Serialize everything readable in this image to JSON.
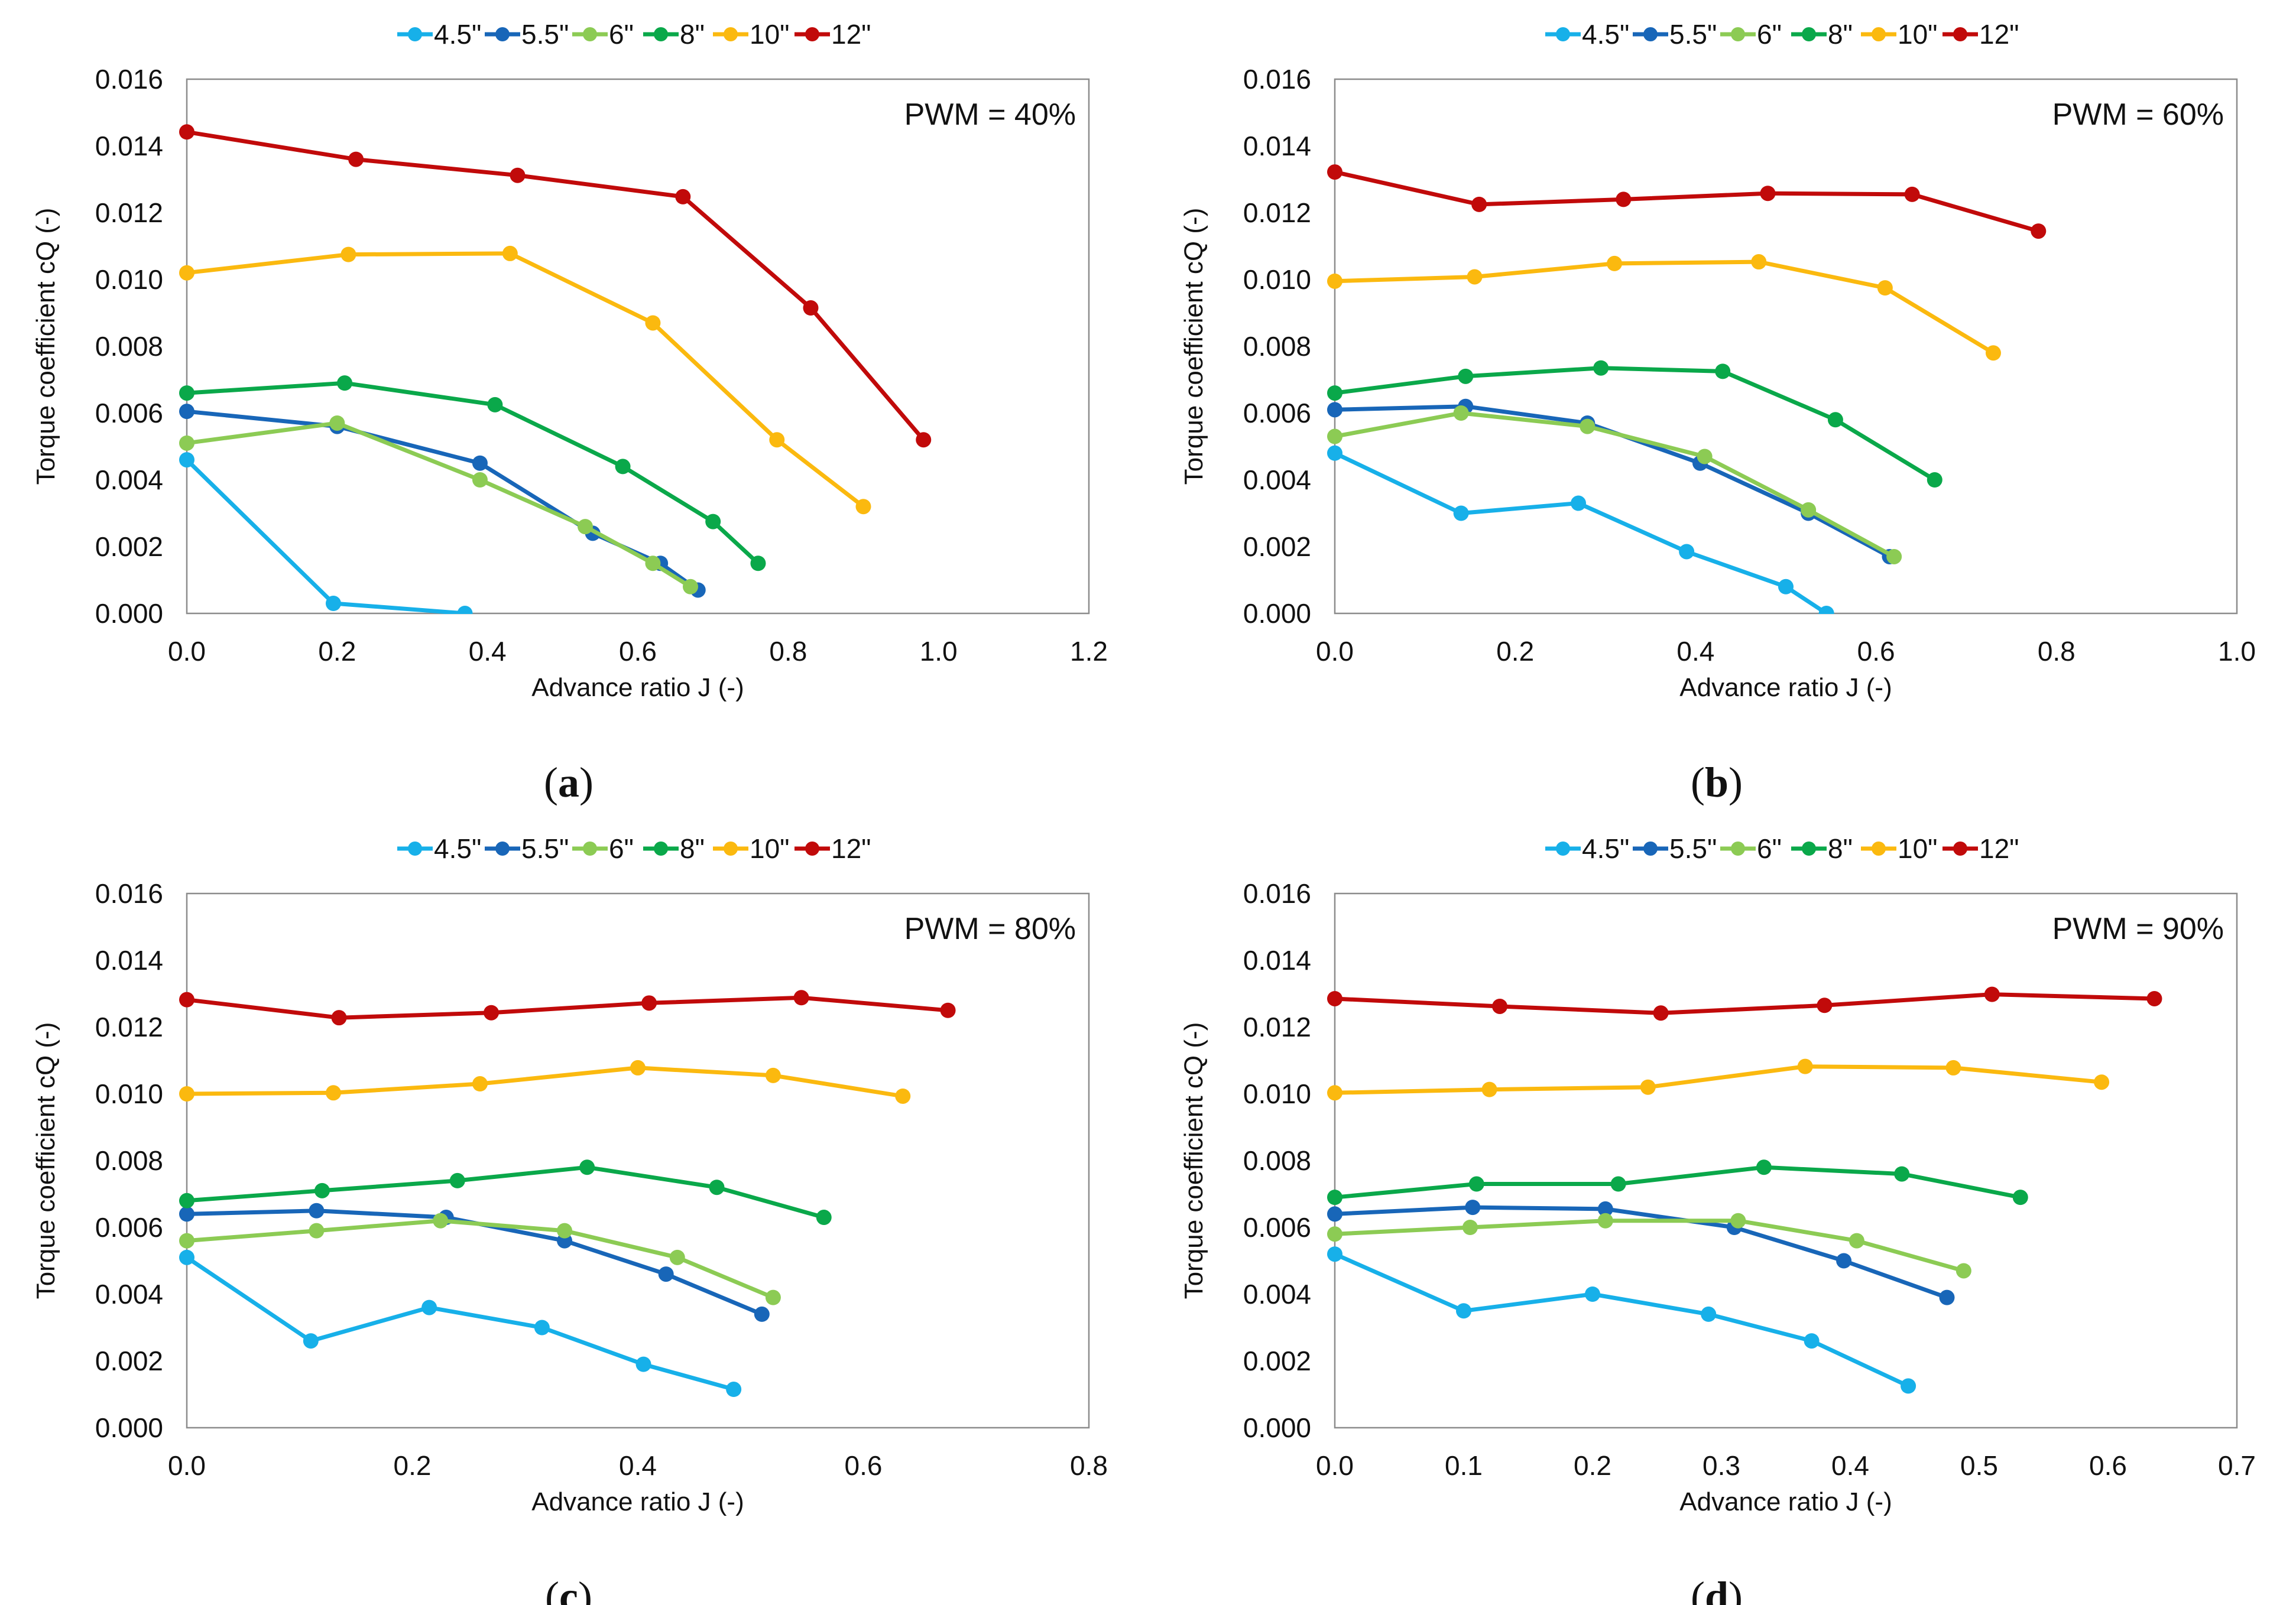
{
  "chart_data": [
    {
      "type": "line",
      "panel_label": "a",
      "annotation": "PWM = 40%",
      "xlabel": "Advance ratio J (-)",
      "ylabel": "Torque coefficient cQ (-)",
      "xlim": [
        0,
        1.2
      ],
      "ylim": [
        0,
        0.016
      ],
      "xticks": [
        "0.0",
        "0.2",
        "0.4",
        "0.6",
        "0.8",
        "1.0",
        "1.2"
      ],
      "yticks": [
        "0.000",
        "0.002",
        "0.004",
        "0.006",
        "0.008",
        "0.010",
        "0.012",
        "0.014",
        "0.016"
      ],
      "grid": false,
      "legend_position": "top-center",
      "series": [
        {
          "name": "4.5\"",
          "color": "#17b0e9",
          "x": [
            0.0,
            0.195,
            0.37
          ],
          "y": [
            0.0046,
            0.0003,
            0.0
          ]
        },
        {
          "name": "5.5\"",
          "color": "#1866b8",
          "x": [
            0.0,
            0.2,
            0.39,
            0.54,
            0.63,
            0.68
          ],
          "y": [
            0.00605,
            0.0056,
            0.0045,
            0.0024,
            0.0015,
            0.0007
          ]
        },
        {
          "name": "6\"",
          "color": "#8ccb54",
          "x": [
            0.0,
            0.2,
            0.39,
            0.53,
            0.62,
            0.67
          ],
          "y": [
            0.0051,
            0.0057,
            0.004,
            0.0026,
            0.0015,
            0.0008
          ]
        },
        {
          "name": "8\"",
          "color": "#0aa84a",
          "x": [
            0.0,
            0.21,
            0.41,
            0.58,
            0.7,
            0.76
          ],
          "y": [
            0.0066,
            0.0069,
            0.00625,
            0.0044,
            0.00275,
            0.0015
          ]
        },
        {
          "name": "10\"",
          "color": "#fbb90f",
          "x": [
            0.0,
            0.215,
            0.43,
            0.62,
            0.785,
            0.9
          ],
          "y": [
            0.0102,
            0.01075,
            0.01078,
            0.0087,
            0.0052,
            0.0032
          ]
        },
        {
          "name": "12\"",
          "color": "#c10a0a",
          "x": [
            0.0,
            0.225,
            0.44,
            0.66,
            0.83,
            0.98
          ],
          "y": [
            0.01442,
            0.0136,
            0.01312,
            0.01248,
            0.00915,
            0.0052
          ]
        }
      ]
    },
    {
      "type": "line",
      "panel_label": "b",
      "annotation": "PWM = 60%",
      "xlabel": "Advance ratio J (-)",
      "ylabel": "Torque coefficient cQ (-)",
      "xlim": [
        0,
        1.0
      ],
      "ylim": [
        0,
        0.016
      ],
      "xticks": [
        "0.0",
        "0.2",
        "0.4",
        "0.6",
        "0.8",
        "1.0"
      ],
      "yticks": [
        "0.000",
        "0.002",
        "0.004",
        "0.006",
        "0.008",
        "0.010",
        "0.012",
        "0.014",
        "0.016"
      ],
      "grid": false,
      "legend_position": "top-center",
      "series": [
        {
          "name": "4.5\"",
          "color": "#17b0e9",
          "x": [
            0.0,
            0.14,
            0.27,
            0.39,
            0.5,
            0.545
          ],
          "y": [
            0.0048,
            0.003,
            0.0033,
            0.00185,
            0.0008,
            0.0
          ]
        },
        {
          "name": "5.5\"",
          "color": "#1866b8",
          "x": [
            0.0,
            0.145,
            0.28,
            0.405,
            0.525,
            0.615
          ],
          "y": [
            0.0061,
            0.0062,
            0.0057,
            0.0045,
            0.003,
            0.0017
          ]
        },
        {
          "name": "6\"",
          "color": "#8ccb54",
          "x": [
            0.0,
            0.14,
            0.28,
            0.41,
            0.525,
            0.62
          ],
          "y": [
            0.0053,
            0.006,
            0.0056,
            0.0047,
            0.0031,
            0.0017
          ]
        },
        {
          "name": "8\"",
          "color": "#0aa84a",
          "x": [
            0.0,
            0.145,
            0.295,
            0.43,
            0.555,
            0.665
          ],
          "y": [
            0.0066,
            0.0071,
            0.00735,
            0.00725,
            0.0058,
            0.004
          ]
        },
        {
          "name": "10\"",
          "color": "#fbb90f",
          "x": [
            0.0,
            0.155,
            0.31,
            0.47,
            0.61,
            0.73
          ],
          "y": [
            0.00995,
            0.01008,
            0.01048,
            0.01053,
            0.00975,
            0.0078
          ]
        },
        {
          "name": "12\"",
          "color": "#c10a0a",
          "x": [
            0.0,
            0.16,
            0.32,
            0.48,
            0.64,
            0.78
          ],
          "y": [
            0.01322,
            0.01225,
            0.0124,
            0.01258,
            0.01255,
            0.01145
          ]
        }
      ]
    },
    {
      "type": "line",
      "panel_label": "c",
      "annotation": "PWM = 80%",
      "xlabel": "Advance ratio J (-)",
      "ylabel": "Torque coefficient cQ (-)",
      "xlim": [
        0,
        0.8
      ],
      "ylim": [
        0,
        0.016
      ],
      "xticks": [
        "0.0",
        "0.2",
        "0.4",
        "0.6",
        "0.8"
      ],
      "yticks": [
        "0.000",
        "0.002",
        "0.004",
        "0.006",
        "0.008",
        "0.010",
        "0.012",
        "0.014",
        "0.016"
      ],
      "grid": false,
      "legend_position": "top-center",
      "series": [
        {
          "name": "4.5\"",
          "color": "#17b0e9",
          "x": [
            0.0,
            0.11,
            0.215,
            0.315,
            0.405,
            0.485
          ],
          "y": [
            0.0051,
            0.0026,
            0.0036,
            0.003,
            0.0019,
            0.00115
          ]
        },
        {
          "name": "5.5\"",
          "color": "#1866b8",
          "x": [
            0.0,
            0.115,
            0.23,
            0.335,
            0.425,
            0.51
          ],
          "y": [
            0.0064,
            0.0065,
            0.0063,
            0.0056,
            0.0046,
            0.0034
          ]
        },
        {
          "name": "6\"",
          "color": "#8ccb54",
          "x": [
            0.0,
            0.115,
            0.225,
            0.335,
            0.435,
            0.52
          ],
          "y": [
            0.0056,
            0.0059,
            0.0062,
            0.0059,
            0.0051,
            0.0039
          ]
        },
        {
          "name": "8\"",
          "color": "#0aa84a",
          "x": [
            0.0,
            0.12,
            0.24,
            0.355,
            0.47,
            0.565
          ],
          "y": [
            0.0068,
            0.0071,
            0.0074,
            0.0078,
            0.0072,
            0.0063
          ]
        },
        {
          "name": "10\"",
          "color": "#fbb90f",
          "x": [
            0.0,
            0.13,
            0.26,
            0.4,
            0.52,
            0.635
          ],
          "y": [
            0.01,
            0.01003,
            0.0103,
            0.01078,
            0.01055,
            0.00993
          ]
        },
        {
          "name": "12\"",
          "color": "#c10a0a",
          "x": [
            0.0,
            0.135,
            0.27,
            0.41,
            0.545,
            0.675
          ],
          "y": [
            0.01282,
            0.01228,
            0.01243,
            0.01272,
            0.01288,
            0.0125
          ]
        }
      ]
    },
    {
      "type": "line",
      "panel_label": "d",
      "annotation": "PWM = 90%",
      "xlabel": "Advance ratio J (-)",
      "ylabel": "Torque coefficient cQ (-)",
      "xlim": [
        0,
        0.7
      ],
      "ylim": [
        0,
        0.016
      ],
      "xticks": [
        "0.0",
        "0.1",
        "0.2",
        "0.3",
        "0.4",
        "0.5",
        "0.6",
        "0.7"
      ],
      "yticks": [
        "0.000",
        "0.002",
        "0.004",
        "0.006",
        "0.008",
        "0.010",
        "0.012",
        "0.014",
        "0.016"
      ],
      "grid": false,
      "legend_position": "top-center",
      "series": [
        {
          "name": "4.5\"",
          "color": "#17b0e9",
          "x": [
            0.0,
            0.1,
            0.2,
            0.29,
            0.37,
            0.445
          ],
          "y": [
            0.0052,
            0.0035,
            0.004,
            0.0034,
            0.0026,
            0.00125
          ]
        },
        {
          "name": "5.5\"",
          "color": "#1866b8",
          "x": [
            0.0,
            0.107,
            0.21,
            0.31,
            0.395,
            0.475
          ],
          "y": [
            0.0064,
            0.0066,
            0.00655,
            0.006,
            0.005,
            0.0039
          ]
        },
        {
          "name": "6\"",
          "color": "#8ccb54",
          "x": [
            0.0,
            0.105,
            0.21,
            0.313,
            0.405,
            0.488
          ],
          "y": [
            0.0058,
            0.006,
            0.0062,
            0.0062,
            0.0056,
            0.0047
          ]
        },
        {
          "name": "8\"",
          "color": "#0aa84a",
          "x": [
            0.0,
            0.11,
            0.22,
            0.333,
            0.44,
            0.532
          ],
          "y": [
            0.0069,
            0.0073,
            0.0073,
            0.0078,
            0.0076,
            0.0069
          ]
        },
        {
          "name": "10\"",
          "color": "#fbb90f",
          "x": [
            0.0,
            0.12,
            0.243,
            0.365,
            0.48,
            0.595
          ],
          "y": [
            0.01003,
            0.01013,
            0.0102,
            0.01082,
            0.01078,
            0.01035
          ]
        },
        {
          "name": "12\"",
          "color": "#c10a0a",
          "x": [
            0.0,
            0.128,
            0.253,
            0.38,
            0.51,
            0.636
          ],
          "y": [
            0.01285,
            0.01262,
            0.01242,
            0.01265,
            0.01298,
            0.01285
          ]
        }
      ]
    }
  ]
}
